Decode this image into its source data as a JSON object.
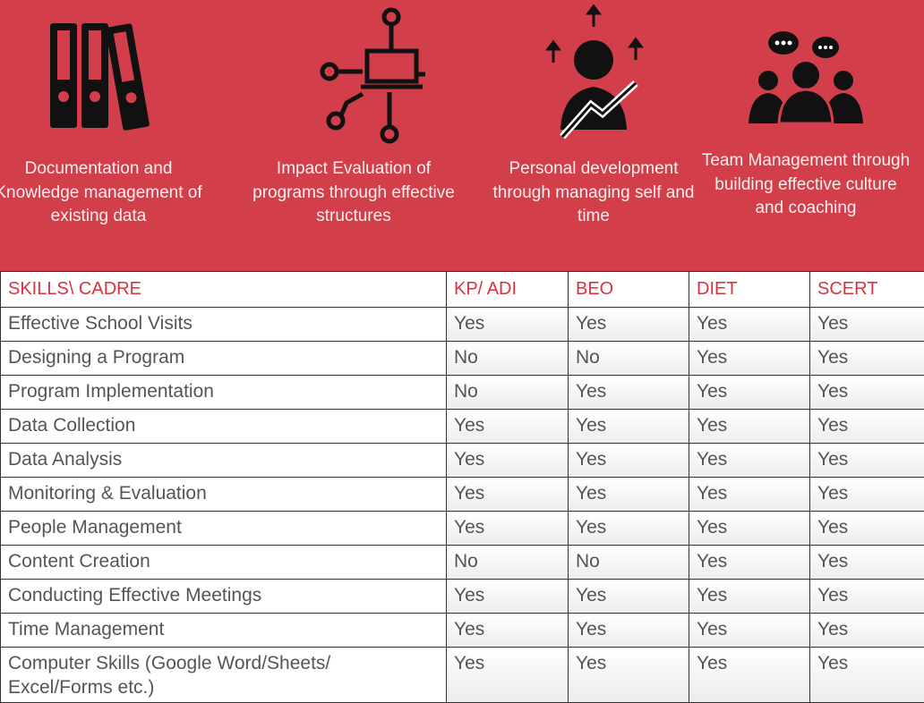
{
  "features": [
    {
      "icon": "binders-icon",
      "label": "Documentation and Knowledge management of existing data"
    },
    {
      "icon": "network-laptop-icon",
      "label": "Impact Evaluation of programs through effective structures"
    },
    {
      "icon": "person-growth-icon",
      "label": "Personal development through managing self and time"
    },
    {
      "icon": "team-chat-icon",
      "label": "Team Management through building effective culture and coaching"
    }
  ],
  "table": {
    "headers": [
      "SKILLS\\ CADRE",
      "KP/ ADI",
      "BEO",
      "DIET",
      "SCERT"
    ],
    "rows": [
      [
        "Effective School Visits",
        "Yes",
        "Yes",
        "Yes",
        "Yes"
      ],
      [
        "Designing a Program",
        "No",
        "No",
        "Yes",
        "Yes"
      ],
      [
        "Program Implementation",
        "No",
        "Yes",
        "Yes",
        "Yes"
      ],
      [
        "Data Collection",
        "Yes",
        "Yes",
        "Yes",
        "Yes"
      ],
      [
        "Data Analysis",
        "Yes",
        "Yes",
        "Yes",
        "Yes"
      ],
      [
        "Monitoring & Evaluation",
        "Yes",
        "Yes",
        "Yes",
        "Yes"
      ],
      [
        "People Management",
        "Yes",
        "Yes",
        "Yes",
        "Yes"
      ],
      [
        "Content Creation",
        "No",
        "No",
        "Yes",
        "Yes"
      ],
      [
        "Conducting Effective Meetings",
        "Yes",
        "Yes",
        "Yes",
        "Yes"
      ],
      [
        "Time Management",
        "Yes",
        "Yes",
        "Yes",
        "Yes"
      ],
      [
        "Computer Skills (Google Word/Sheets/ Excel/Forms etc.)",
        "Yes",
        "Yes",
        "Yes",
        "Yes"
      ]
    ]
  },
  "colors": {
    "banner": "#d23f4b",
    "header_text": "#d6323f"
  }
}
